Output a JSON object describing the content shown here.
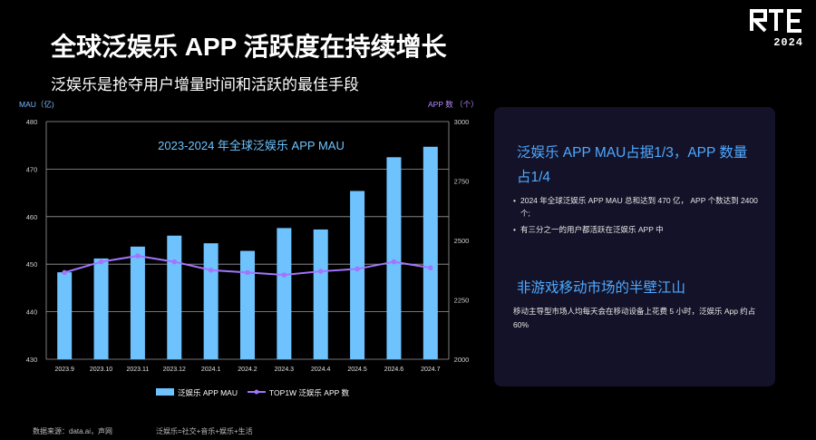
{
  "logo": {
    "text": "RTE",
    "year": "2024"
  },
  "title": "全球泛娱乐 APP 活跃度在持续增长",
  "subtitle": "泛娱乐是抢夺用户增量时间和活跃的最佳手段",
  "chart_data": {
    "type": "bar",
    "title": "2023-2024 年全球泛娱乐 APP MAU",
    "categories": [
      "2023.9",
      "2023.10",
      "2023.11",
      "2023.12",
      "2024.1",
      "2024.2",
      "2024.3",
      "2024.4",
      "2024.5",
      "2024.6",
      "2024.7"
    ],
    "left_axis": {
      "label": "MAU（亿)",
      "ylim": [
        430,
        480
      ],
      "ticks": [
        430,
        440,
        450,
        460,
        470,
        480
      ]
    },
    "right_axis": {
      "label": "APP 数 （个）",
      "ylim": [
        2000,
        3000
      ],
      "ticks": [
        2000,
        2250,
        2500,
        2750,
        3000
      ]
    },
    "series": [
      {
        "name": "泛娱乐 APP MAU",
        "type": "bar",
        "axis": "left",
        "color": "#6ec3ff",
        "values": [
          448.3,
          451.2,
          453.7,
          456.0,
          454.4,
          452.8,
          457.6,
          457.3,
          465.4,
          472.5,
          474.7
        ]
      },
      {
        "name": "TOP1W 泛娱乐 APP 数",
        "type": "line",
        "axis": "right",
        "color": "#a374ff",
        "values": [
          2365,
          2410,
          2435,
          2410,
          2375,
          2365,
          2355,
          2370,
          2380,
          2410,
          2385
        ]
      }
    ],
    "grid": true,
    "legend": "bottom"
  },
  "panel": {
    "heading1": "泛娱乐 APP MAU占据1/3，APP 数量占1/4",
    "bullets": [
      "2024 年全球泛娱乐 APP MAU 总和达到 470 亿， APP 个数达到 2400 个;",
      "有三分之一的用户都活跃在泛娱乐 APP 中"
    ],
    "heading2": "非游戏移动市场的半壁江山",
    "body": "移动主导型市场人均每天会在移动设备上花费 5 小时，泛娱乐 App 约占60%"
  },
  "footer": {
    "source": "数据来源：data.ai，声网",
    "note": "泛娱乐=社交+音乐+娱乐+生活"
  },
  "colors": {
    "bar": "#6ec3ff",
    "line": "#a374ff",
    "accent_text": "#4fa9ff",
    "panel_bg": "#131228"
  }
}
